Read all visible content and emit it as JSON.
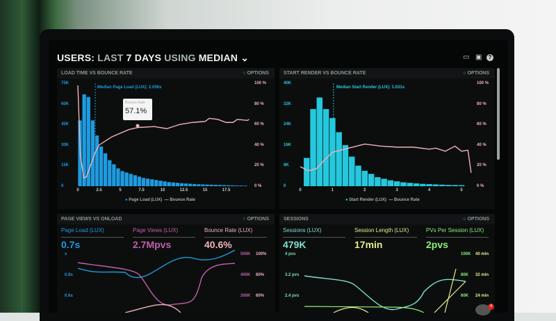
{
  "header": {
    "title_a": "USERS:",
    "title_b": "LAST",
    "title_c": "7 DAYS",
    "title_d": "USING",
    "title_e": "MEDIAN",
    "icons": [
      "monitor-icon",
      "image-icon",
      "help-icon"
    ]
  },
  "panels": {
    "load": {
      "title": "LOAD TIME VS BOUNCE RATE",
      "options": "OPTIONS",
      "median": "Median Page Load (LUX): 2.056s",
      "tooltip_label": "Bounce Rate",
      "tooltip_value": "57.1%",
      "y_left": [
        "75K",
        "60K",
        "45K",
        "30K",
        "15K",
        "0"
      ],
      "y_right": [
        "100 %",
        "80 %",
        "60 %",
        "40 %",
        "20 %",
        "0 %"
      ],
      "x": [
        "0",
        "2.5",
        "5",
        "7.5",
        "10",
        "12.5",
        "15",
        "17.5"
      ],
      "legend": [
        "Page Load (LUX)",
        "Bounce Rate"
      ]
    },
    "render": {
      "title": "START RENDER VS BOUNCE RATE",
      "options": "OPTIONS",
      "median": "Median Start Render (LUX): 1.031s",
      "y_left": [
        "40K",
        "32K",
        "24K",
        "16K",
        "8K",
        "0"
      ],
      "y_right": [
        "100 %",
        "80 %",
        "60 %",
        "40 %",
        "20 %",
        "0 %"
      ],
      "x": [
        "0",
        "1",
        "2",
        "3",
        "4",
        "5"
      ],
      "legend": [
        "Start Render (LUX)",
        "Bounce Rate"
      ]
    },
    "pageviews": {
      "title": "PAGE VIEWS VS ONLOAD",
      "options": "OPTIONS",
      "stats": [
        {
          "label": "Page Load (LUX)",
          "value": "0.7s"
        },
        {
          "label": "Page Views (LUX)",
          "value": "2.7Mpvs"
        },
        {
          "label": "Bounce Rate (LUX)",
          "value": "40.6%"
        }
      ],
      "y_left": [
        "s",
        "0.8s",
        "0.6s"
      ],
      "y_mid": [
        "500K",
        "400K",
        "300K"
      ],
      "y_right": [
        "100%",
        "80%",
        "60%"
      ]
    },
    "sessions": {
      "title": "SESSIONS",
      "options": "OPTIONS",
      "stats": [
        {
          "label": "Sessions (LUX)",
          "value": "479K"
        },
        {
          "label": "Session Length (LUX)",
          "value": "17min"
        },
        {
          "label": "PVs Per Session (LUX)",
          "value": "2pvs"
        }
      ],
      "y_left": [
        "4 pvs",
        "3.2 pvs",
        "2.4 pvs"
      ],
      "y_mid": [
        "100K",
        "80K",
        "60K"
      ],
      "y_right": [
        "40 min",
        "32 min",
        "24 min"
      ]
    }
  },
  "notification_count": "4",
  "colors": {
    "blue": "#1e9be0",
    "cyan": "#25c8dc",
    "pink": "#f0b4b8",
    "purple": "#c060a8",
    "green": "#7fe0b0",
    "yellow": "#e6f08a",
    "lime": "#8ef07a"
  },
  "chart_data": [
    {
      "type": "bar",
      "name": "load",
      "bin_width": 0.5,
      "values_k": [
        48,
        67,
        65,
        48,
        37,
        29,
        24,
        19,
        16,
        13,
        11,
        10,
        9,
        8,
        7,
        6,
        5.5,
        5,
        4.5,
        4,
        3.5,
        3,
        2.7,
        2.5,
        2.2,
        2,
        1.8,
        1.6,
        1.4,
        1.3,
        1.2,
        1.1,
        1,
        0.9,
        0.8,
        0.7,
        0.6,
        0.5,
        0.5,
        0.4
      ],
      "bounce": [
        [
          0,
          98
        ],
        [
          0.3,
          30
        ],
        [
          0.7,
          8
        ],
        [
          1,
          9
        ],
        [
          1.5,
          20
        ],
        [
          2,
          32
        ],
        [
          2.5,
          40
        ],
        [
          4,
          48
        ],
        [
          6,
          55
        ],
        [
          7.1,
          57.1
        ],
        [
          9,
          58
        ],
        [
          10.5,
          56
        ],
        [
          12,
          60
        ],
        [
          13.5,
          62
        ],
        [
          15,
          63
        ],
        [
          15.5,
          66
        ],
        [
          16.5,
          65
        ],
        [
          17.5,
          62
        ],
        [
          18.3,
          62
        ],
        [
          18.8,
          65
        ],
        [
          20,
          64
        ],
        [
          20.2,
          65
        ]
      ]
    },
    {
      "type": "bar",
      "name": "render",
      "bin_width": 0.2,
      "values_k": [
        11,
        30,
        34.5,
        30,
        26.5,
        21,
        16,
        11.5,
        8,
        6,
        4.8,
        3.5,
        2.9,
        2.3,
        1.9,
        1.5,
        1.3,
        1.1,
        0.9,
        0.8,
        0.7,
        0.6,
        0.5,
        0.45,
        0.4
      ],
      "bounce": [
        [
          0,
          19
        ],
        [
          0.25,
          15
        ],
        [
          0.5,
          17
        ],
        [
          0.8,
          27
        ],
        [
          1,
          33
        ],
        [
          1.5,
          37
        ],
        [
          2,
          41
        ],
        [
          2.5,
          39
        ],
        [
          3,
          38
        ],
        [
          3.5,
          38
        ],
        [
          4,
          36
        ],
        [
          4.2,
          37
        ],
        [
          4.5,
          34
        ],
        [
          4.8,
          39
        ],
        [
          5,
          34
        ],
        [
          5.2,
          35
        ],
        [
          5.3,
          13
        ]
      ]
    }
  ]
}
